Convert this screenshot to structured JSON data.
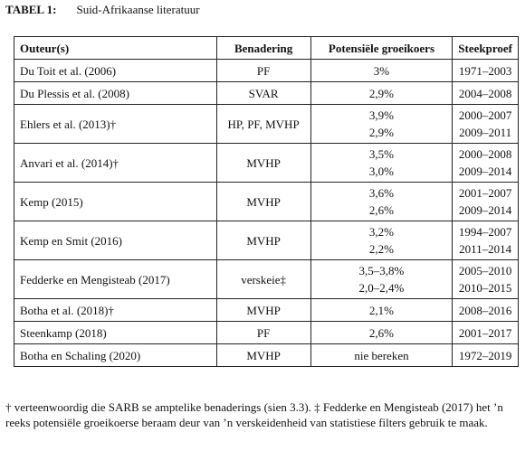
{
  "caption": {
    "label": "TABEL 1:",
    "title": "Suid-Afrikaanse literatuur"
  },
  "table": {
    "headers": [
      "Outeur(s)",
      "Benadering",
      "Potensiële groeikoers",
      "Steekproef"
    ],
    "rows": [
      {
        "author": "Du Toit et al. (2006)",
        "approach": "PF",
        "rates": [
          "3%"
        ],
        "samples": [
          "1971–2003"
        ]
      },
      {
        "author": "Du Plessis et al. (2008)",
        "approach": "SVAR",
        "rates": [
          "2,9%"
        ],
        "samples": [
          "2004–2008"
        ]
      },
      {
        "author": "Ehlers et al. (2013)†",
        "approach": "HP, PF, MVHP",
        "rates": [
          "3,9%",
          "2,9%"
        ],
        "samples": [
          "2000–2007",
          "2009–2011"
        ]
      },
      {
        "author": "Anvari et al. (2014)†",
        "approach": "MVHP",
        "rates": [
          "3,5%",
          "3,0%"
        ],
        "samples": [
          "2000–2008",
          "2009–2014"
        ]
      },
      {
        "author": "Kemp (2015)",
        "approach": "MVHP",
        "rates": [
          "3,6%",
          "2,6%"
        ],
        "samples": [
          "2001–2007",
          "2009–2014"
        ]
      },
      {
        "author": "Kemp en Smit (2016)",
        "approach": "MVHP",
        "rates": [
          "3,2%",
          "2,2%"
        ],
        "samples": [
          "1994–2007",
          "2011–2014"
        ]
      },
      {
        "author": "Fedderke en Mengisteab (2017)",
        "approach": "verskeie‡",
        "rates": [
          "3,5–3,8%",
          "2,0–2,4%"
        ],
        "samples": [
          "2005–2010",
          "2010–2015"
        ]
      },
      {
        "author": "Botha et al. (2018)†",
        "approach": "MVHP",
        "rates": [
          "2,1%"
        ],
        "samples": [
          "2008–2016"
        ]
      },
      {
        "author": "Steenkamp (2018)",
        "approach": "PF",
        "rates": [
          "2,6%"
        ],
        "samples": [
          "2001–2017"
        ]
      },
      {
        "author": "Botha en Schaling (2020)",
        "approach": "MVHP",
        "rates": [
          "nie bereken"
        ],
        "samples": [
          "1972–2019"
        ]
      }
    ]
  },
  "footnote": "† verteenwoordig die SARB se amptelike benaderings (sien 3.3). ‡ Fedderke en Mengisteab (2017) het ’n reeks potensiële groeikoerse beraam deur van ’n verskeidenheid van statistiese filters gebruik te maak."
}
